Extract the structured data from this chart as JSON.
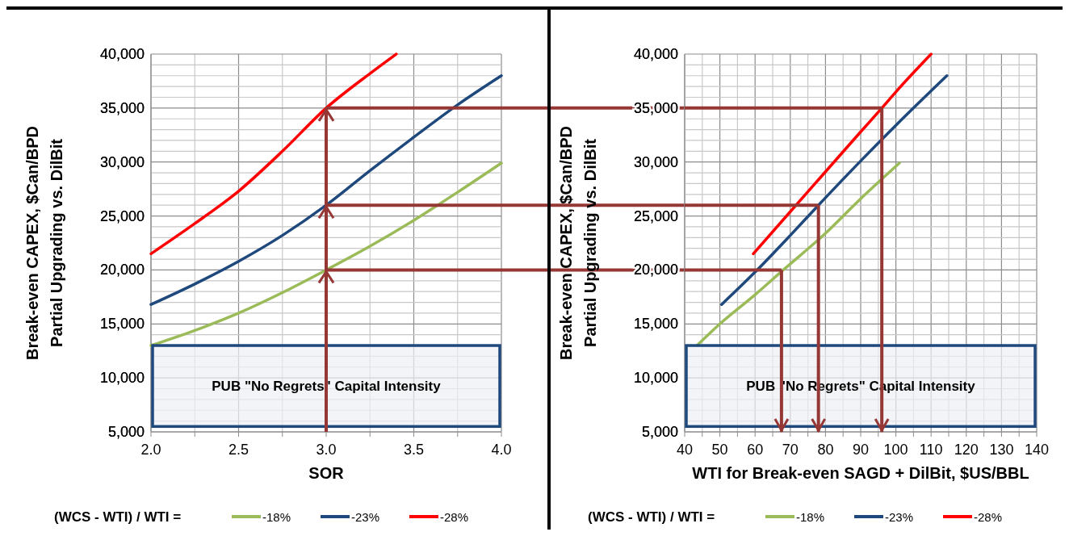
{
  "chart_data": [
    {
      "type": "line",
      "xlabel": "SOR",
      "ylabel": "Break-even CAPEX, $Can/BPD\nPartial Upgrading vs. DilBit",
      "legend_title": "(WCS - WTI) / WTI =",
      "legend": "bottom",
      "grid": true,
      "xlim": [
        2,
        4
      ],
      "xticks": [
        {
          "value": 2,
          "label": "2.0"
        },
        {
          "value": 2.25,
          "label": null
        },
        {
          "value": 2.5,
          "label": "2.5"
        },
        {
          "value": 2.75,
          "label": null
        },
        {
          "value": 3,
          "label": "3.0"
        },
        {
          "value": 3.25,
          "label": null
        },
        {
          "value": 3.5,
          "label": "3.5"
        },
        {
          "value": 3.75,
          "label": null
        },
        {
          "value": 4,
          "label": "4.0"
        }
      ],
      "ylim": [
        5000,
        40000
      ],
      "yticks": [
        {
          "value": 5000,
          "label": "5,000"
        },
        {
          "value": 6000,
          "label": null
        },
        {
          "value": 7000,
          "label": null
        },
        {
          "value": 8000,
          "label": null
        },
        {
          "value": 9000,
          "label": null
        },
        {
          "value": 10000,
          "label": "10,000"
        },
        {
          "value": 11000,
          "label": null
        },
        {
          "value": 12000,
          "label": null
        },
        {
          "value": 14000,
          "label": null
        },
        {
          "value": 15000,
          "label": "15,000"
        },
        {
          "value": 16000,
          "label": null
        },
        {
          "value": 17000,
          "label": null
        },
        {
          "value": 18000,
          "label": null
        },
        {
          "value": 19000,
          "label": null
        },
        {
          "value": 20000,
          "label": "20,000"
        },
        {
          "value": 21000,
          "label": null
        },
        {
          "value": 22000,
          "label": null
        },
        {
          "value": 23000,
          "label": null
        },
        {
          "value": 24000,
          "label": null
        },
        {
          "value": 25000,
          "label": "25,000"
        },
        {
          "value": 26000,
          "label": null
        },
        {
          "value": 27000,
          "label": null
        },
        {
          "value": 28000,
          "label": null
        },
        {
          "value": 29000,
          "label": null
        },
        {
          "value": 30000,
          "label": "30,000"
        },
        {
          "value": 31000,
          "label": null
        },
        {
          "value": 32000,
          "label": null
        },
        {
          "value": 33000,
          "label": null
        },
        {
          "value": 34000,
          "label": null
        },
        {
          "value": 35000,
          "label": "35,000"
        },
        {
          "value": 36000,
          "label": null
        },
        {
          "value": 37000,
          "label": null
        },
        {
          "value": 38000,
          "label": null
        },
        {
          "value": 39000,
          "label": null
        },
        {
          "value": 40000,
          "label": "40,000"
        }
      ],
      "series": [
        {
          "name": "-18%",
          "color": "#9bbb59",
          "x": [
            2,
            2.25,
            2.5,
            2.75,
            3,
            3.25,
            3.5,
            3.75,
            4
          ],
          "values": [
            13000,
            14400,
            16000,
            17900,
            20000,
            22200,
            24600,
            27200,
            29900
          ]
        },
        {
          "name": "-23%",
          "color": "#1f497d",
          "x": [
            2,
            2.25,
            2.5,
            2.75,
            3,
            3.25,
            3.5,
            3.75,
            4
          ],
          "values": [
            16800,
            18700,
            20800,
            23200,
            26000,
            29200,
            32300,
            35300,
            38000
          ]
        },
        {
          "name": "-28%",
          "color": "#ff0000",
          "x": [
            2,
            2.25,
            2.5,
            2.75,
            3,
            3.25,
            3.4
          ],
          "values": [
            21500,
            24300,
            27300,
            31000,
            35000,
            38200,
            40000
          ]
        }
      ],
      "bands": [
        {
          "axis": "y",
          "from": 5500,
          "to": 13000,
          "label": "PUB \"No Regrets\" Capital Intensity",
          "color": "#1f497d"
        }
      ],
      "ref_lines": [
        {
          "axis": "x",
          "value": 3,
          "color": "#953735"
        },
        {
          "axis": "y",
          "value": 20000,
          "color": "#953735"
        },
        {
          "axis": "y",
          "value": 26000,
          "color": "#953735"
        },
        {
          "axis": "y",
          "value": 35000,
          "color": "#953735"
        }
      ]
    },
    {
      "type": "line",
      "xlabel": "WTI for Break-even SAGD + DilBit, $US/BBL",
      "ylabel": "Break-even CAPEX, $Can/BPD\nPartial Upgrading vs. DilBit",
      "legend_title": "(WCS - WTI) / WTI =",
      "legend": "bottom",
      "grid": true,
      "xlim": [
        40,
        140
      ],
      "xticks": [
        40,
        {
          "value": 45,
          "label": null
        },
        50,
        {
          "value": 55,
          "label": null
        },
        60,
        {
          "value": 65,
          "label": null
        },
        70,
        {
          "value": 75,
          "label": null
        },
        80,
        {
          "value": 85,
          "label": null
        },
        90,
        {
          "value": 95,
          "label": null
        },
        100,
        {
          "value": 105,
          "label": null
        },
        110,
        {
          "value": 115,
          "label": null
        },
        120,
        {
          "value": 125,
          "label": null
        },
        130,
        {
          "value": 135,
          "label": null
        },
        140
      ],
      "ylim": [
        5000,
        40000
      ],
      "yticks": [
        {
          "value": 5000,
          "label": "5,000"
        },
        {
          "value": 6000,
          "label": null
        },
        {
          "value": 7000,
          "label": null
        },
        {
          "value": 8000,
          "label": null
        },
        {
          "value": 9000,
          "label": null
        },
        {
          "value": 10000,
          "label": "10,000"
        },
        {
          "value": 11000,
          "label": null
        },
        {
          "value": 12000,
          "label": null
        },
        {
          "value": 14000,
          "label": null
        },
        {
          "value": 15000,
          "label": "15,000"
        },
        {
          "value": 16000,
          "label": null
        },
        {
          "value": 17000,
          "label": null
        },
        {
          "value": 18000,
          "label": null
        },
        {
          "value": 19000,
          "label": null
        },
        {
          "value": 20000,
          "label": "20,000"
        },
        {
          "value": 21000,
          "label": null
        },
        {
          "value": 22000,
          "label": null
        },
        {
          "value": 23000,
          "label": null
        },
        {
          "value": 24000,
          "label": null
        },
        {
          "value": 25000,
          "label": "25,000"
        },
        {
          "value": 26000,
          "label": null
        },
        {
          "value": 27000,
          "label": null
        },
        {
          "value": 28000,
          "label": null
        },
        {
          "value": 29000,
          "label": null
        },
        {
          "value": 30000,
          "label": "30,000"
        },
        {
          "value": 31000,
          "label": null
        },
        {
          "value": 32000,
          "label": null
        },
        {
          "value": 33000,
          "label": null
        },
        {
          "value": 34000,
          "label": null
        },
        {
          "value": 35000,
          "label": "35,000"
        },
        {
          "value": 36000,
          "label": null
        },
        {
          "value": 37000,
          "label": null
        },
        {
          "value": 38000,
          "label": null
        },
        {
          "value": 39000,
          "label": null
        },
        {
          "value": 40000,
          "label": "40,000"
        }
      ],
      "series": [
        {
          "name": "-18%",
          "color": "#9bbb59",
          "x": [
            43.5,
            50,
            60,
            68,
            80,
            90,
            101
          ],
          "values": [
            13000,
            15000,
            17700,
            20000,
            23400,
            26600,
            29900
          ]
        },
        {
          "name": "-23%",
          "color": "#1f497d",
          "x": [
            50.5,
            60,
            70,
            78,
            90,
            100,
            114.5
          ],
          "values": [
            16800,
            19800,
            23200,
            26000,
            30100,
            33400,
            38000
          ]
        },
        {
          "name": "-28%",
          "color": "#ff0000",
          "x": [
            59.5,
            70,
            80,
            90,
            96,
            100,
            110
          ],
          "values": [
            21500,
            25400,
            29100,
            32800,
            35000,
            36500,
            40000
          ]
        }
      ],
      "bands": [
        {
          "axis": "y",
          "from": 5500,
          "to": 13000,
          "label": "PUB \"No Regrets\" Capital Intensity",
          "color": "#1f497d"
        }
      ],
      "ref_lines": [
        {
          "axis": "x",
          "value": 67.5,
          "color": "#953735"
        },
        {
          "axis": "x",
          "value": 78,
          "color": "#953735"
        },
        {
          "axis": "x",
          "value": 96,
          "color": "#953735"
        },
        {
          "axis": "y",
          "value": 20000,
          "color": "#953735"
        },
        {
          "axis": "y",
          "value": 26000,
          "color": "#953735"
        },
        {
          "axis": "y",
          "value": 35000,
          "color": "#953735"
        }
      ]
    }
  ]
}
